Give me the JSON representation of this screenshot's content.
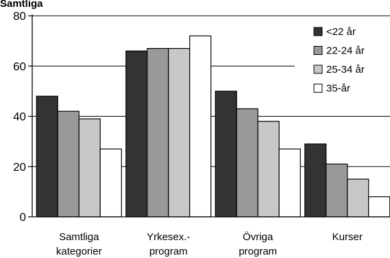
{
  "chart_data": {
    "type": "bar",
    "title": "Samtliga",
    "categories": [
      [
        "Samtliga",
        "kategorier"
      ],
      [
        "Yrkesex.-",
        "program"
      ],
      [
        "Övriga",
        "program"
      ],
      [
        "Kurser"
      ]
    ],
    "category_texts": [
      "Samtliga kategorier",
      "Yrkesex.- program",
      "Övriga program",
      "Kurser"
    ],
    "series": [
      {
        "name": "<22 år",
        "color": "#333333",
        "values": [
          48,
          66,
          50,
          29
        ]
      },
      {
        "name": "22-24 år",
        "color": "#999999",
        "values": [
          42,
          67,
          43,
          21
        ]
      },
      {
        "name": "25-34 år",
        "color": "#c8c8c8",
        "values": [
          39,
          67,
          38,
          15
        ]
      },
      {
        "name": "35-år",
        "color": "#ffffff",
        "values": [
          27,
          72,
          27,
          8
        ]
      }
    ],
    "ylim": [
      0,
      80
    ],
    "yticks": [
      0,
      20,
      40,
      60,
      80
    ],
    "grid": true,
    "legend_position": "top-right",
    "xlabel": "",
    "ylabel": ""
  }
}
